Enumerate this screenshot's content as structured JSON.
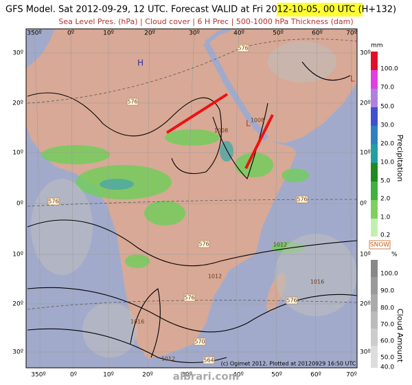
{
  "header": {
    "title": "GFS Model. Sat 2012-09-29, 12 UTC. Forecast VALID at Fri 2012-10-05, 00 UTC (H+132)",
    "subtitle": "Sea Level Pres. (hPa) | Cloud cover | 6 H Prec | 500-1000 hPa Thickness (dam)"
  },
  "map": {
    "longitudes": [
      "350º",
      "0º",
      "10º",
      "20º",
      "30º",
      "40º",
      "50º",
      "60º",
      "70º"
    ],
    "latitudes": [
      "30º",
      "20º",
      "10º",
      "0º",
      "10º",
      "20º",
      "30º"
    ],
    "pressure_centers": [
      "H",
      "L",
      "L"
    ],
    "contour_labels": [
      "576",
      "576",
      "576",
      "576",
      "576",
      "576",
      "576",
      "570",
      "564",
      "1012",
      "1016",
      "1008",
      "1008",
      "1012",
      "1016",
      "1012"
    ],
    "credit": "(c) Ogimet 2012. Plotted at 20120929 16:50 UTC",
    "watermark": "albrari.com"
  },
  "precipitation_legend": {
    "unit": "mm",
    "title": "Precipitation",
    "ticks": [
      "100.0",
      "70.0",
      "50.0",
      "30.0",
      "20.0",
      "10.0",
      "5.0",
      "2.0",
      "1.0",
      "0.2"
    ]
  },
  "cloud_legend": {
    "snow": "SNOW",
    "unit": "%",
    "title": "Cloud Amount",
    "ticks": [
      "100.0",
      "90.0",
      "80.0",
      "70.0",
      "60.0",
      "50.0",
      "40.0"
    ]
  }
}
